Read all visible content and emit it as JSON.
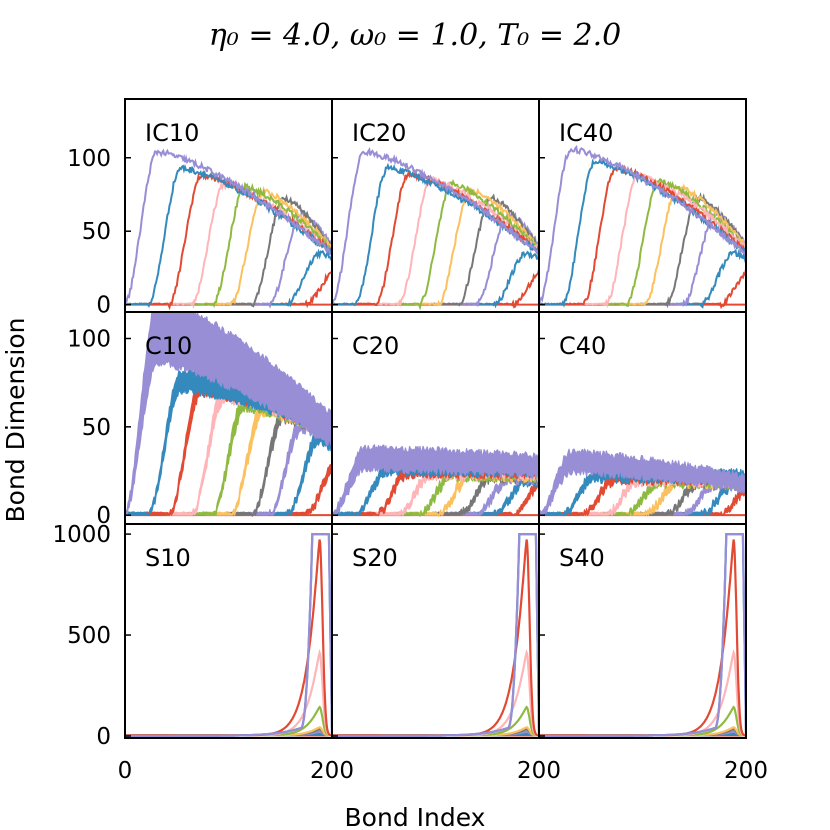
{
  "chart_data": {
    "type": "line",
    "title": "η₀ = 4.0, ω₀ = 1.0, T₀ = 2.0",
    "xlabel": "Bond Index",
    "ylabel": "Bond Dimension",
    "xlim": [
      0,
      200
    ],
    "x_ticks": [
      "0",
      "200",
      "200",
      "200"
    ],
    "series_colors": [
      "#e24a33",
      "#348abd",
      "#988ed5",
      "#777777",
      "#fbc15e",
      "#8eba42",
      "#ffb5b8",
      "#e24a33",
      "#348abd",
      "#988ed5"
    ],
    "rows": [
      {
        "ylim": [
          -5,
          140
        ],
        "yticks": [
          0,
          50,
          100
        ],
        "ytick_labels": [
          "0",
          "50",
          "100"
        ],
        "panels": [
          {
            "label": "IC10",
            "style": "line",
            "curves": [
              {
                "start": 190,
                "peak": 25,
                "end": 25
              },
              {
                "start": 172,
                "peak": 35,
                "end": 32
              },
              {
                "start": 155,
                "peak": 62,
                "end": 40
              },
              {
                "start": 138,
                "peak": 73,
                "end": 38
              },
              {
                "start": 118,
                "peak": 77,
                "end": 38
              },
              {
                "start": 100,
                "peak": 80,
                "end": 37
              },
              {
                "start": 80,
                "peak": 82,
                "end": 36
              },
              {
                "start": 58,
                "peak": 88,
                "end": 36
              },
              {
                "start": 38,
                "peak": 93,
                "end": 35
              },
              {
                "start": 15,
                "peak": 104,
                "end": 35
              }
            ]
          },
          {
            "label": "IC20",
            "style": "line",
            "curves": [
              {
                "start": 190,
                "peak": 25,
                "end": 25
              },
              {
                "start": 172,
                "peak": 35,
                "end": 32
              },
              {
                "start": 155,
                "peak": 62,
                "end": 40
              },
              {
                "start": 138,
                "peak": 73,
                "end": 38
              },
              {
                "start": 118,
                "peak": 78,
                "end": 38
              },
              {
                "start": 100,
                "peak": 82,
                "end": 37
              },
              {
                "start": 80,
                "peak": 85,
                "end": 36
              },
              {
                "start": 58,
                "peak": 89,
                "end": 36
              },
              {
                "start": 38,
                "peak": 93,
                "end": 35
              },
              {
                "start": 15,
                "peak": 104,
                "end": 35
              }
            ]
          },
          {
            "label": "IC40",
            "style": "line",
            "curves": [
              {
                "start": 190,
                "peak": 25,
                "end": 25
              },
              {
                "start": 172,
                "peak": 35,
                "end": 32
              },
              {
                "start": 155,
                "peak": 62,
                "end": 40
              },
              {
                "start": 138,
                "peak": 73,
                "end": 40
              },
              {
                "start": 118,
                "peak": 80,
                "end": 40
              },
              {
                "start": 100,
                "peak": 84,
                "end": 38
              },
              {
                "start": 80,
                "peak": 88,
                "end": 38
              },
              {
                "start": 58,
                "peak": 93,
                "end": 36
              },
              {
                "start": 38,
                "peak": 97,
                "end": 35
              },
              {
                "start": 15,
                "peak": 106,
                "end": 35
              }
            ]
          }
        ]
      },
      {
        "ylim": [
          -5,
          115
        ],
        "yticks": [
          0,
          50,
          100
        ],
        "ytick_labels": [
          "0",
          "50",
          "100"
        ],
        "panels": [
          {
            "label": "C10",
            "style": "band",
            "curves": [
              {
                "start": 190,
                "peak": 30,
                "end": 30
              },
              {
                "start": 172,
                "peak": 45,
                "end": 40
              },
              {
                "start": 155,
                "peak": 52,
                "end": 45
              },
              {
                "start": 138,
                "peak": 58,
                "end": 47
              },
              {
                "start": 118,
                "peak": 62,
                "end": 48
              },
              {
                "start": 100,
                "peak": 65,
                "end": 48
              },
              {
                "start": 80,
                "peak": 70,
                "end": 49
              },
              {
                "start": 58,
                "peak": 74,
                "end": 50
              },
              {
                "start": 38,
                "peak": 76,
                "end": 50
              },
              {
                "start": 15,
                "peak": 104,
                "end": 48
              }
            ]
          },
          {
            "label": "C20",
            "style": "band",
            "curves": [
              {
                "start": 190,
                "peak": 20,
                "end": 20
              },
              {
                "start": 172,
                "peak": 20,
                "end": 20
              },
              {
                "start": 155,
                "peak": 21,
                "end": 21
              },
              {
                "start": 138,
                "peak": 22,
                "end": 22
              },
              {
                "start": 118,
                "peak": 23,
                "end": 23
              },
              {
                "start": 100,
                "peak": 23,
                "end": 23
              },
              {
                "start": 80,
                "peak": 24,
                "end": 24
              },
              {
                "start": 58,
                "peak": 25,
                "end": 25
              },
              {
                "start": 38,
                "peak": 26,
                "end": 26
              },
              {
                "start": 15,
                "peak": 32,
                "end": 28
              }
            ]
          },
          {
            "label": "C40",
            "style": "band",
            "curves": [
              {
                "start": 190,
                "peak": 17,
                "end": 17
              },
              {
                "start": 172,
                "peak": 17,
                "end": 17
              },
              {
                "start": 155,
                "peak": 18,
                "end": 18
              },
              {
                "start": 138,
                "peak": 18,
                "end": 18
              },
              {
                "start": 118,
                "peak": 19,
                "end": 19
              },
              {
                "start": 100,
                "peak": 19,
                "end": 19
              },
              {
                "start": 80,
                "peak": 20,
                "end": 20
              },
              {
                "start": 58,
                "peak": 21,
                "end": 21
              },
              {
                "start": 38,
                "peak": 22,
                "end": 22
              },
              {
                "start": 15,
                "peak": 30,
                "end": 18
              }
            ]
          }
        ]
      },
      {
        "ylim": [
          -10,
          1050
        ],
        "yticks": [
          0,
          500,
          1000
        ],
        "ytick_labels": [
          "0",
          "500",
          "1000"
        ],
        "panels": [
          {
            "label": "S10",
            "style": "peak",
            "peaks": [
              0,
              8,
              18,
              30,
              40,
              140,
              410,
              970,
              1000,
              1000
            ]
          },
          {
            "label": "S20",
            "style": "peak",
            "peaks": [
              0,
              8,
              18,
              30,
              40,
              140,
              410,
              970,
              1000,
              1000
            ]
          },
          {
            "label": "S40",
            "style": "peak",
            "peaks": [
              0,
              8,
              18,
              30,
              40,
              140,
              410,
              970,
              1000,
              1000
            ]
          }
        ]
      }
    ]
  }
}
